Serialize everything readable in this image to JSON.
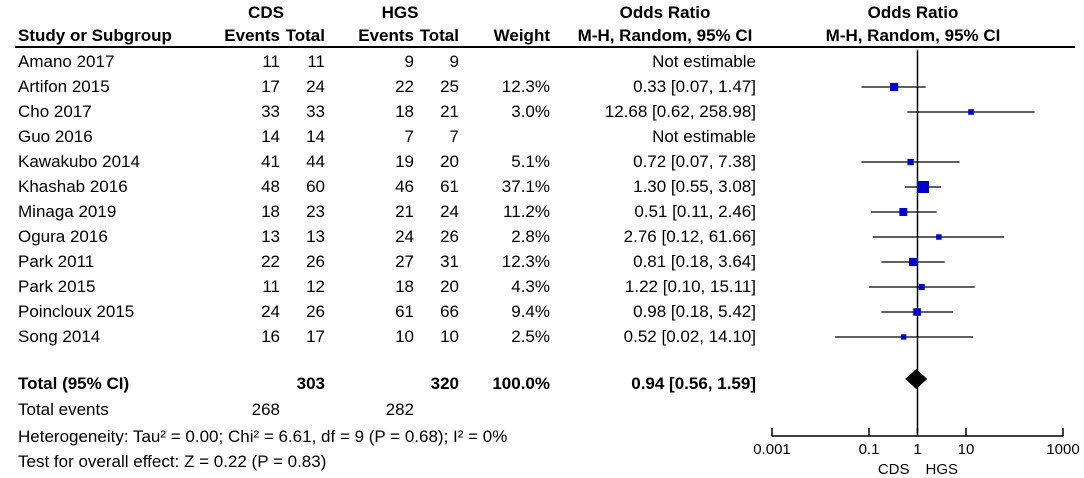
{
  "headers": {
    "group1": "CDS",
    "group2": "HGS",
    "study": "Study or Subgroup",
    "events": "Events",
    "total": "Total",
    "weight": "Weight",
    "or_title": "Odds Ratio",
    "or_method": "M-H, Random, 95% CI",
    "plot_title": "Odds Ratio",
    "plot_method": "M-H, Random, 95% CI"
  },
  "footer": {
    "total_label": "Total (95% CI)",
    "total_g1": "303",
    "total_g2": "320",
    "total_weight": "100.0%",
    "total_or": "0.94 [0.56, 1.59]",
    "events_label": "Total events",
    "events_g1": "268",
    "events_g2": "282",
    "heterogeneity": "Heterogeneity: Tau² = 0.00; Chi² = 6.61, df = 9 (P = 0.68); I² = 0%",
    "overall": "Test for overall effect: Z = 0.22 (P = 0.83)"
  },
  "chart_data": {
    "type": "forest",
    "scale": "log",
    "xlim": [
      0.001,
      1000
    ],
    "ticks": [
      "0.001",
      "0.1",
      "1",
      "10",
      "1000"
    ],
    "tick_values": [
      0.001,
      0.1,
      1,
      10,
      1000
    ],
    "xlabel_left": "CDS",
    "xlabel_right": "HGS",
    "studies": [
      {
        "name": "Amano 2017",
        "e1": "11",
        "t1": "11",
        "e2": "9",
        "t2": "9",
        "weight": "",
        "or_text": "Not estimable",
        "or": null,
        "lo": null,
        "hi": null,
        "w": 0
      },
      {
        "name": "Artifon 2015",
        "e1": "17",
        "t1": "24",
        "e2": "22",
        "t2": "25",
        "weight": "12.3%",
        "or_text": "0.33 [0.07, 1.47]",
        "or": 0.33,
        "lo": 0.07,
        "hi": 1.47,
        "w": 12.3
      },
      {
        "name": "Cho 2017",
        "e1": "33",
        "t1": "33",
        "e2": "18",
        "t2": "21",
        "weight": "3.0%",
        "or_text": "12.68 [0.62, 258.98]",
        "or": 12.68,
        "lo": 0.62,
        "hi": 258.98,
        "w": 3.0
      },
      {
        "name": "Guo 2016",
        "e1": "14",
        "t1": "14",
        "e2": "7",
        "t2": "7",
        "weight": "",
        "or_text": "Not estimable",
        "or": null,
        "lo": null,
        "hi": null,
        "w": 0
      },
      {
        "name": "Kawakubo 2014",
        "e1": "41",
        "t1": "44",
        "e2": "19",
        "t2": "20",
        "weight": "5.1%",
        "or_text": "0.72 [0.07, 7.38]",
        "or": 0.72,
        "lo": 0.07,
        "hi": 7.38,
        "w": 5.1
      },
      {
        "name": "Khashab 2016",
        "e1": "48",
        "t1": "60",
        "e2": "46",
        "t2": "61",
        "weight": "37.1%",
        "or_text": "1.30 [0.55, 3.08]",
        "or": 1.3,
        "lo": 0.55,
        "hi": 3.08,
        "w": 37.1
      },
      {
        "name": "Minaga 2019",
        "e1": "18",
        "t1": "23",
        "e2": "21",
        "t2": "24",
        "weight": "11.2%",
        "or_text": "0.51 [0.11, 2.46]",
        "or": 0.51,
        "lo": 0.11,
        "hi": 2.46,
        "w": 11.2
      },
      {
        "name": "Ogura 2016",
        "e1": "13",
        "t1": "13",
        "e2": "24",
        "t2": "26",
        "weight": "2.8%",
        "or_text": "2.76 [0.12, 61.66]",
        "or": 2.76,
        "lo": 0.12,
        "hi": 61.66,
        "w": 2.8
      },
      {
        "name": "Park 2011",
        "e1": "22",
        "t1": "26",
        "e2": "27",
        "t2": "31",
        "weight": "12.3%",
        "or_text": "0.81 [0.18, 3.64]",
        "or": 0.81,
        "lo": 0.18,
        "hi": 3.64,
        "w": 12.3
      },
      {
        "name": "Park 2015",
        "e1": "11",
        "t1": "12",
        "e2": "18",
        "t2": "20",
        "weight": "4.3%",
        "or_text": "1.22 [0.10, 15.11]",
        "or": 1.22,
        "lo": 0.1,
        "hi": 15.11,
        "w": 4.3
      },
      {
        "name": "Poincloux 2015",
        "e1": "24",
        "t1": "26",
        "e2": "61",
        "t2": "66",
        "weight": "9.4%",
        "or_text": "0.98 [0.18, 5.42]",
        "or": 0.98,
        "lo": 0.18,
        "hi": 5.42,
        "w": 9.4
      },
      {
        "name": "Song 2014",
        "e1": "16",
        "t1": "17",
        "e2": "10",
        "t2": "10",
        "weight": "2.5%",
        "or_text": "0.52 [0.02, 14.10]",
        "or": 0.52,
        "lo": 0.02,
        "hi": 14.1,
        "w": 2.5
      }
    ],
    "pooled": {
      "or": 0.94,
      "lo": 0.56,
      "hi": 1.59
    },
    "colors": {
      "square": "#0000cc",
      "diamond": "#000000"
    }
  }
}
